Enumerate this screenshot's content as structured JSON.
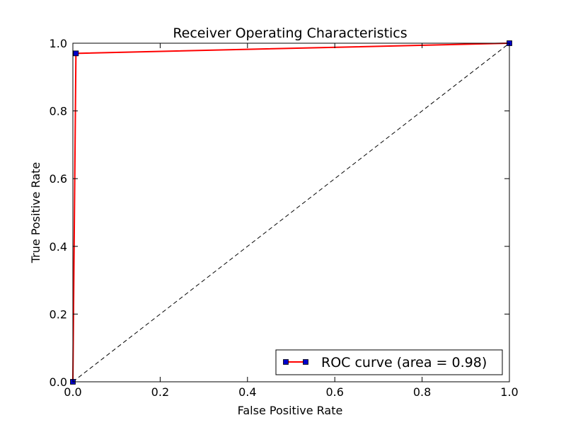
{
  "chart_data": {
    "type": "line",
    "title": "Receiver Operating Characteristics",
    "xlabel": "False Positive Rate",
    "ylabel": "True Positive Rate",
    "xlim": [
      0.0,
      1.0
    ],
    "ylim": [
      0.0,
      1.0
    ],
    "x_ticks": [
      "0.0",
      "0.2",
      "0.4",
      "0.6",
      "0.8",
      "1.0"
    ],
    "y_ticks": [
      "0.0",
      "0.2",
      "0.4",
      "0.6",
      "0.8",
      "1.0"
    ],
    "grid": false,
    "legend_position": "lower-right",
    "series": [
      {
        "name": "ROC curve (area = 0.98)",
        "x": [
          0.0,
          0.007,
          1.0
        ],
        "y": [
          0.0,
          0.97,
          1.0
        ],
        "line_color": "#ff0000",
        "marker": "square",
        "marker_color": "#0000cc"
      }
    ],
    "reference_line": {
      "x": [
        0.0,
        1.0
      ],
      "y": [
        0.0,
        1.0
      ],
      "style": "dashed",
      "color": "#000000"
    }
  }
}
